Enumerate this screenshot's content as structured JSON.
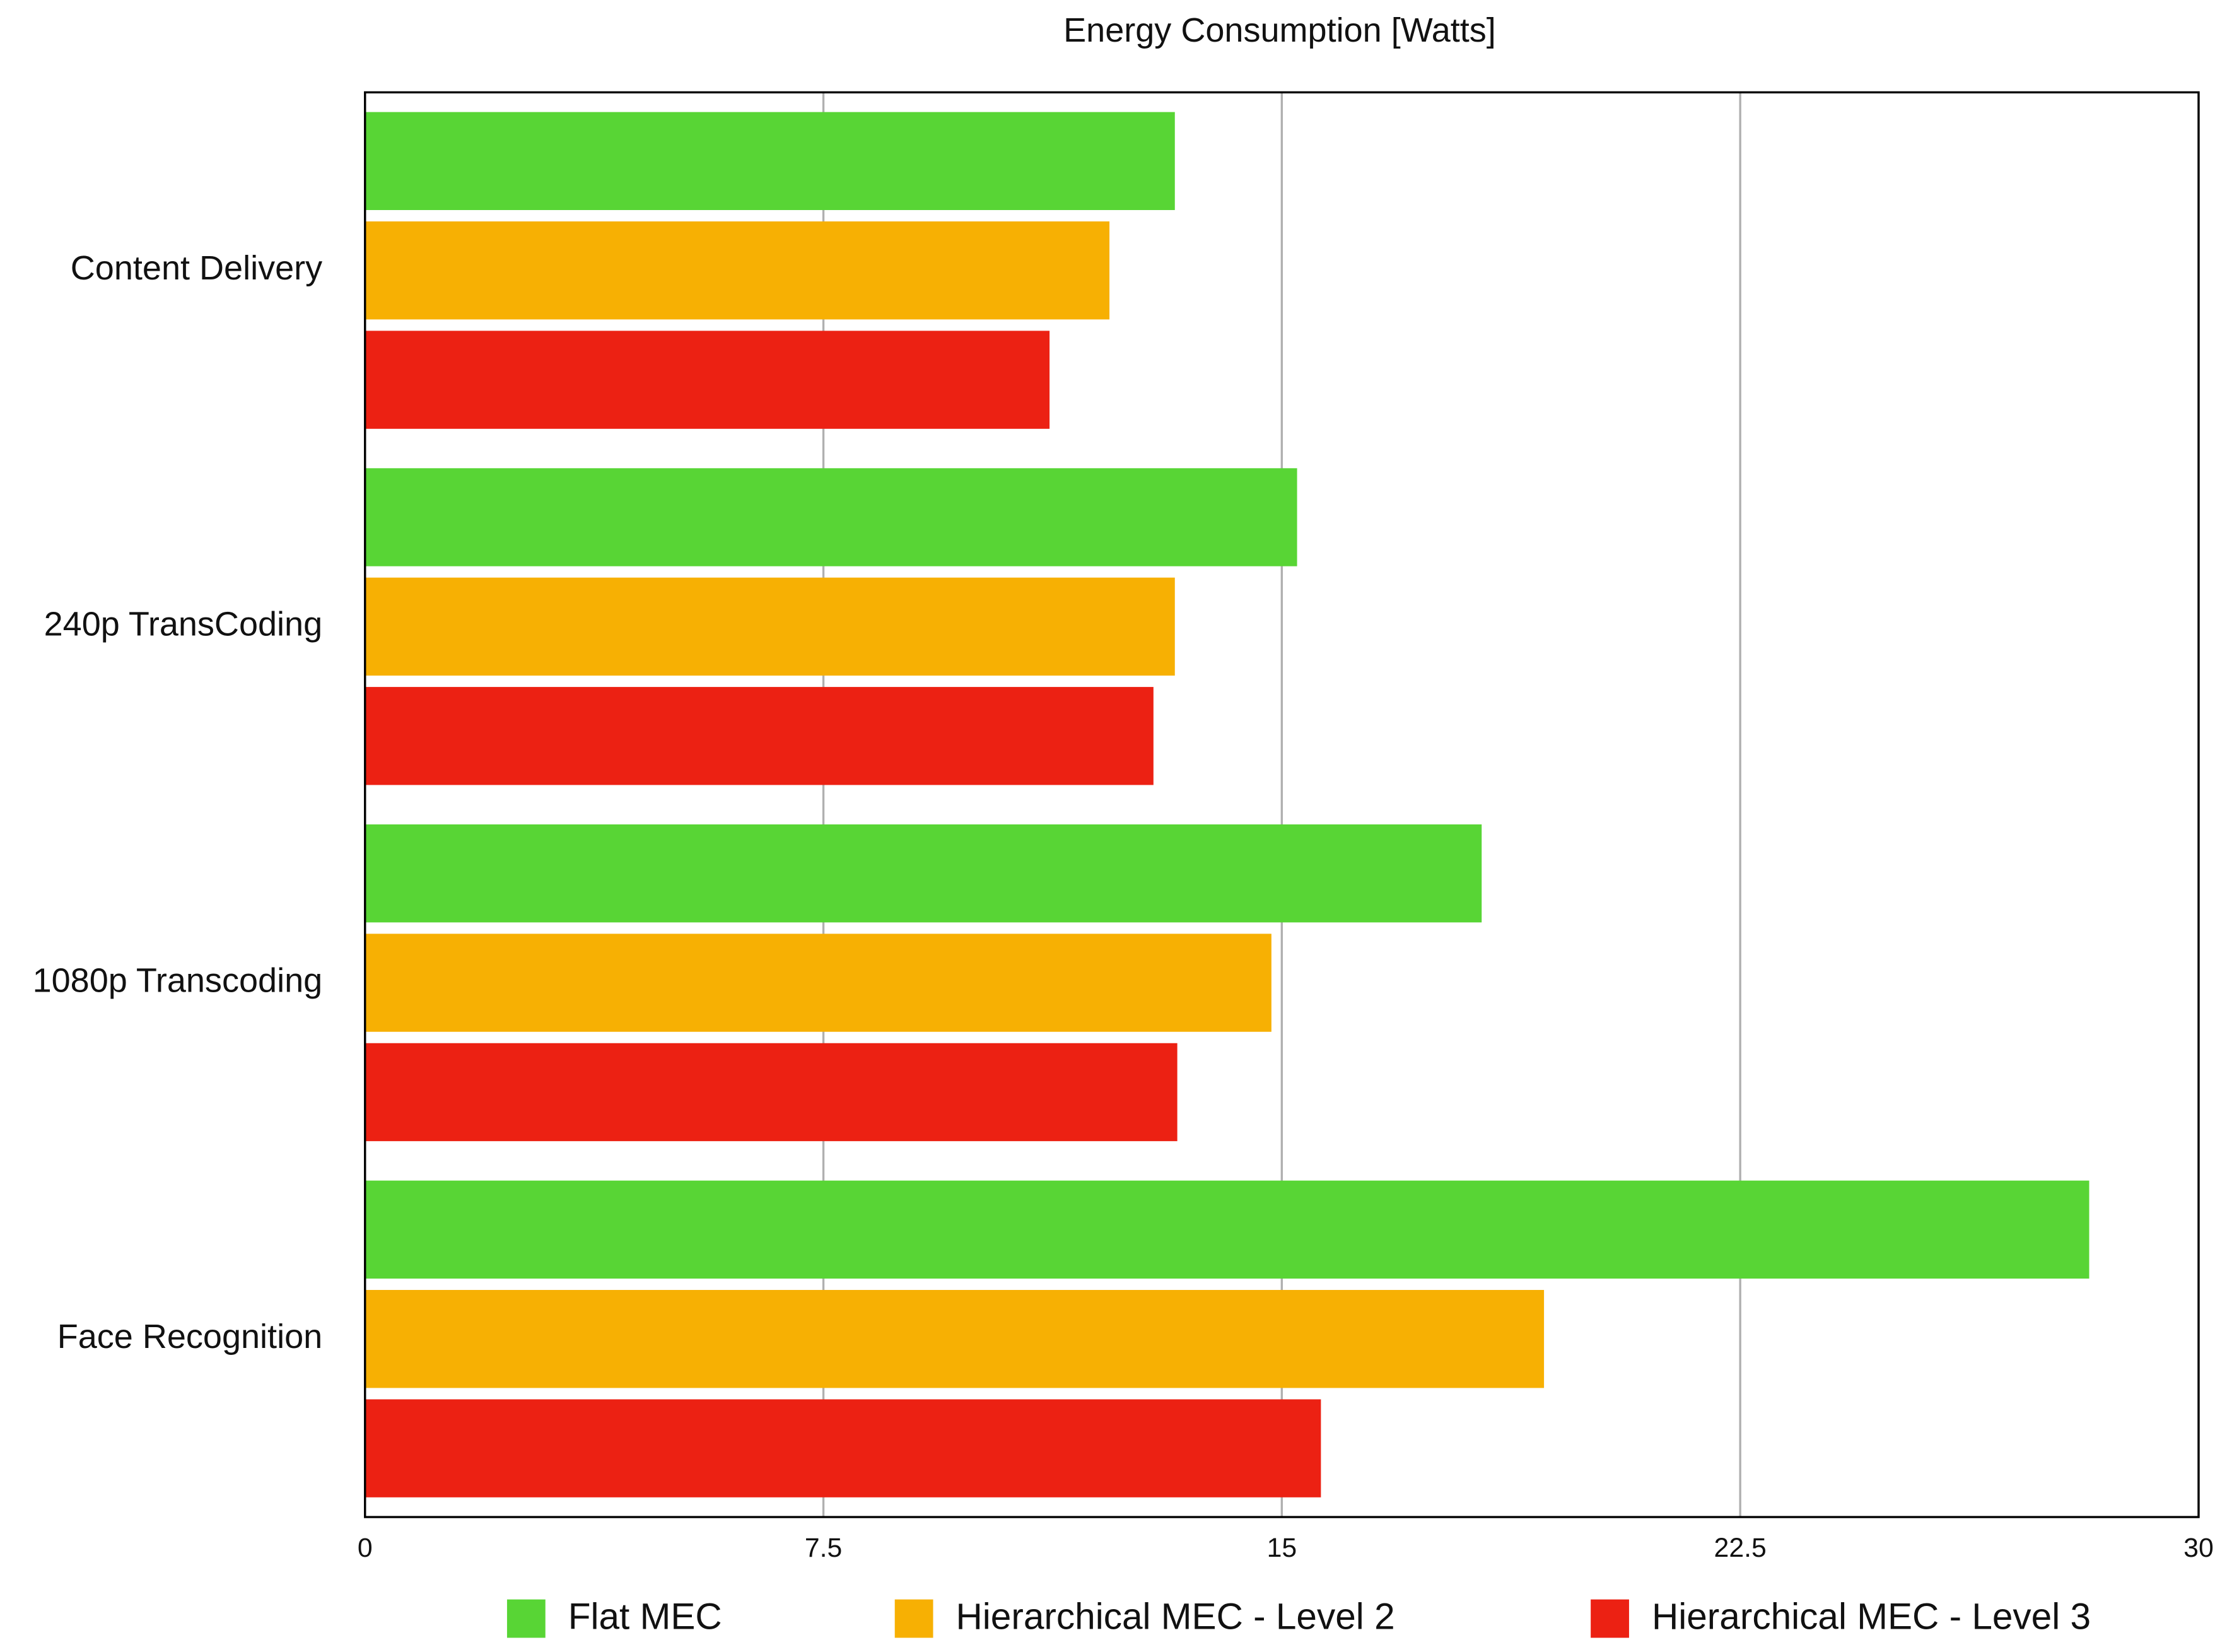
{
  "chart_data": {
    "type": "hbar",
    "title": "Energy Consumption [Watts]",
    "categories": [
      "Content Delivery",
      "240p TransCoding",
      "1080p Transcoding",
      "Face Recognition"
    ],
    "series": [
      {
        "name": "Flat MEC",
        "color": "#58d535",
        "values": [
          13.25,
          15.25,
          18.27,
          28.21
        ]
      },
      {
        "name": "Hierarchical MEC - Level 2",
        "color": "#f7b003",
        "values": [
          12.18,
          13.25,
          14.83,
          19.29
        ]
      },
      {
        "name": "Hierarchical MEC - Level 3",
        "color": "#ec2113",
        "values": [
          11.2,
          12.9,
          13.29,
          15.64
        ]
      }
    ],
    "xlim": [
      0,
      30
    ],
    "xticks": [
      0,
      7.5,
      15,
      22.5,
      30
    ],
    "grid": true,
    "legend": "bottom"
  }
}
